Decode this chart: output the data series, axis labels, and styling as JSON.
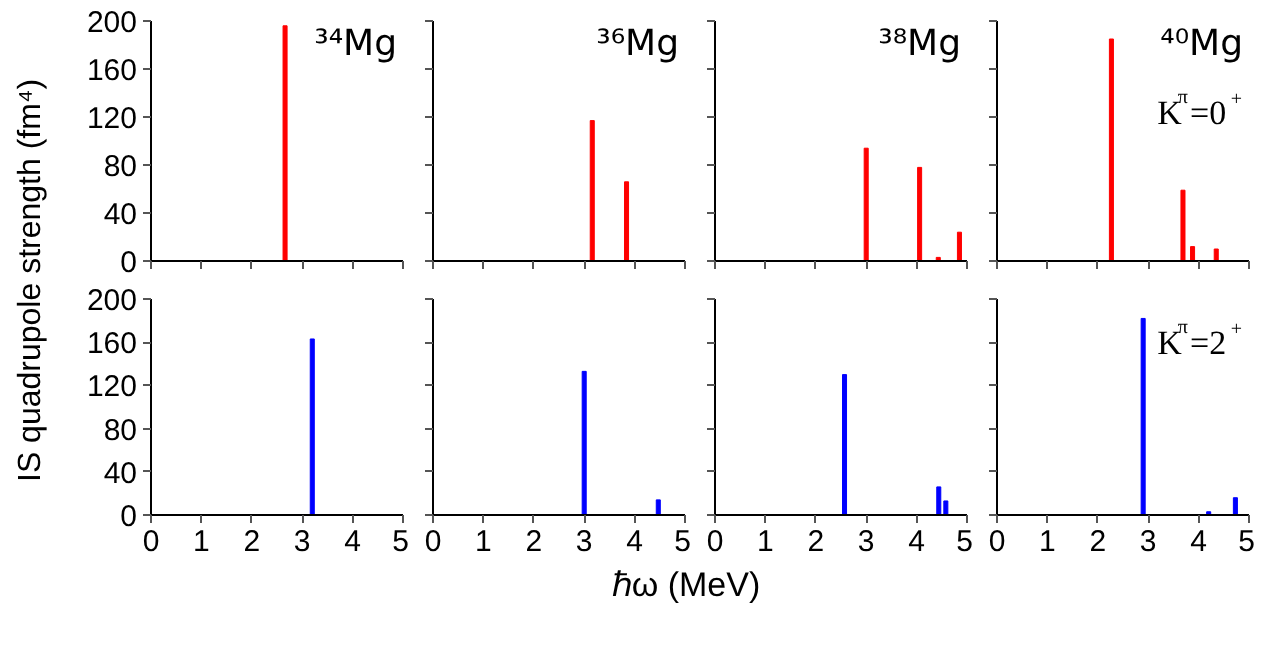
{
  "chart_data": [
    {
      "type": "bar",
      "title": "³⁴Mg",
      "ylabel": "IS quadrupole strength (fm⁴)",
      "x": [
        2.66
      ],
      "values": [
        196
      ],
      "color": "#ff0000",
      "xlim": [
        0,
        5
      ],
      "ylim": [
        0,
        200
      ],
      "xticks": [
        0,
        1,
        2,
        3,
        4,
        5
      ],
      "yticks": [
        0,
        40,
        80,
        120,
        160,
        200
      ],
      "tick_labels": "y",
      "grid": false
    },
    {
      "type": "bar",
      "title": "³⁶Mg",
      "x": [
        3.16,
        3.84
      ],
      "values": [
        117,
        66
      ],
      "color": "#ff0000",
      "xlim": [
        0,
        5
      ],
      "ylim": [
        0,
        200
      ],
      "xticks": [
        0,
        1,
        2,
        3,
        4,
        5
      ],
      "yticks": [
        0,
        40,
        80,
        120,
        160,
        200
      ],
      "tick_labels": false,
      "grid": false
    },
    {
      "type": "bar",
      "title": "³⁸Mg",
      "x": [
        3.0,
        4.06,
        4.43,
        4.85
      ],
      "values": [
        94,
        78,
        3,
        24
      ],
      "color": "#ff0000",
      "xlim": [
        0,
        5
      ],
      "ylim": [
        0,
        200
      ],
      "xticks": [
        0,
        1,
        2,
        3,
        4,
        5
      ],
      "yticks": [
        0,
        40,
        80,
        120,
        160,
        200
      ],
      "tick_labels": false,
      "grid": false
    },
    {
      "type": "bar",
      "title": "⁴⁰Mg",
      "annotations": [
        "K$^{π}$=0$^{+}$"
      ],
      "x": [
        2.27,
        3.69,
        3.88,
        4.35
      ],
      "values": [
        185,
        59,
        12,
        10
      ],
      "color": "#ff0000",
      "xlim": [
        0,
        5
      ],
      "ylim": [
        0,
        200
      ],
      "xticks": [
        0,
        1,
        2,
        3,
        4,
        5
      ],
      "yticks": [
        0,
        40,
        80,
        120,
        160,
        200
      ],
      "tick_labels": false,
      "grid": false
    },
    {
      "type": "bar",
      "xlabel": "ℏω (MeV)",
      "x": [
        3.2
      ],
      "values": [
        163
      ],
      "color": "#0000ff",
      "xlim": [
        0,
        5
      ],
      "ylim": [
        0,
        200
      ],
      "xticks": [
        0,
        1,
        2,
        3,
        4,
        5
      ],
      "yticks": [
        0,
        40,
        80,
        120,
        160,
        200
      ],
      "grid": false
    },
    {
      "type": "bar",
      "x": [
        3.0,
        4.47
      ],
      "values": [
        133,
        14
      ],
      "color": "#0000ff",
      "xlim": [
        0,
        5
      ],
      "ylim": [
        0,
        200
      ],
      "xticks": [
        0,
        1,
        2,
        3,
        4,
        5
      ],
      "yticks": [
        0,
        40,
        80,
        120,
        160,
        200
      ],
      "tick_labels": "x",
      "grid": false
    },
    {
      "type": "bar",
      "x": [
        2.57,
        4.44,
        4.58
      ],
      "values": [
        130,
        26,
        13
      ],
      "color": "#0000ff",
      "xlim": [
        0,
        5
      ],
      "ylim": [
        0,
        200
      ],
      "xticks": [
        0,
        1,
        2,
        3,
        4,
        5
      ],
      "yticks": [
        0,
        40,
        80,
        120,
        160,
        200
      ],
      "tick_labels": "x",
      "grid": false
    },
    {
      "type": "bar",
      "annotations": [
        "K$^{π}$=2$^{+}$"
      ],
      "x": [
        2.9,
        4.2,
        4.73
      ],
      "values": [
        182,
        3,
        16
      ],
      "color": "#0000ff",
      "xlim": [
        0,
        5
      ],
      "ylim": [
        0,
        200
      ],
      "xticks": [
        0,
        1,
        2,
        3,
        4,
        5
      ],
      "yticks": [
        0,
        40,
        80,
        120,
        160,
        200
      ],
      "tick_labels": "x",
      "grid": false
    }
  ]
}
